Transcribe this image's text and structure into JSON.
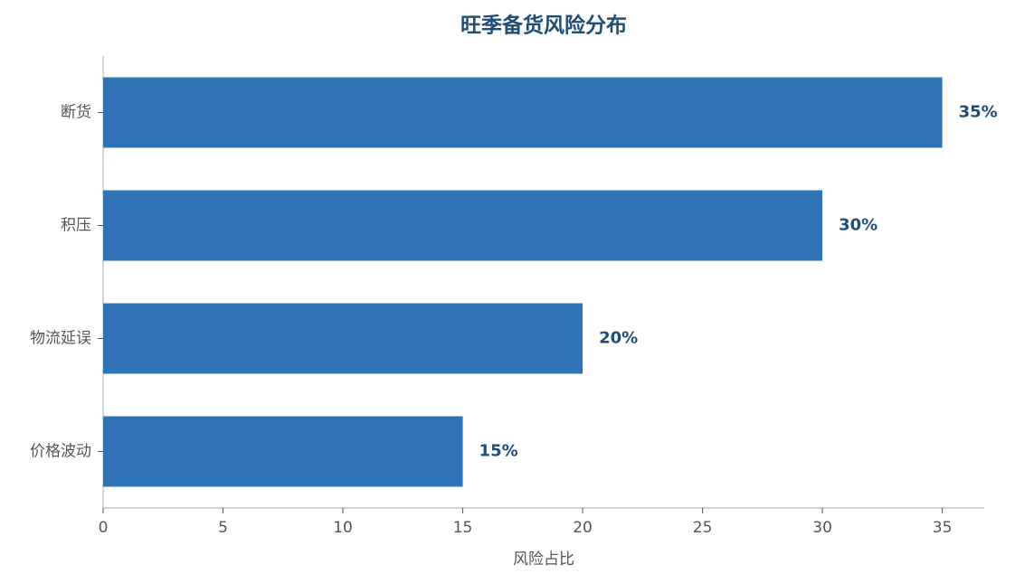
{
  "chart_data": {
    "type": "bar",
    "orientation": "horizontal",
    "title": "旺季备货风险分布",
    "x_label": "风险占比",
    "categories": [
      "断货",
      "积压",
      "物流延误",
      "价格波动"
    ],
    "values": [
      35,
      30,
      20,
      15
    ],
    "value_labels": [
      "35%",
      "30%",
      "20%",
      "15%"
    ],
    "color": "#2e74b5",
    "xlim": [
      0,
      36.75
    ],
    "xticks": [
      0,
      5,
      10,
      15,
      20,
      25,
      30,
      35
    ],
    "grid": false
  }
}
